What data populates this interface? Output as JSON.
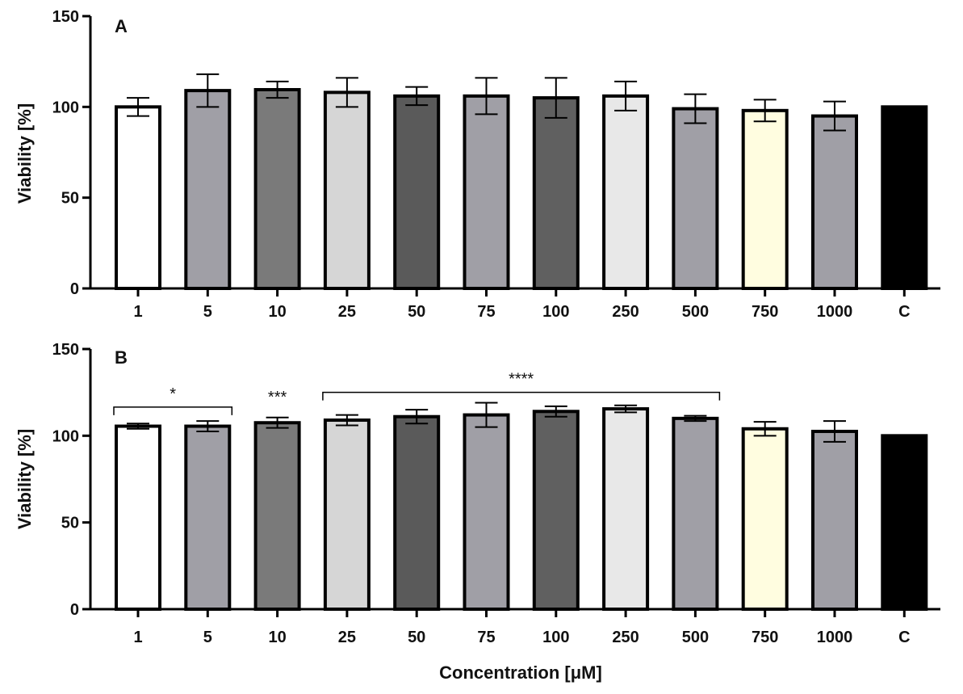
{
  "chart_data": [
    {
      "type": "bar",
      "panel_label": "A",
      "ylabel": "Viability [%]",
      "xlabel": "",
      "ylim": [
        0,
        150
      ],
      "yticks": [
        0,
        50,
        100,
        150
      ],
      "categories": [
        "1",
        "5",
        "10",
        "25",
        "50",
        "75",
        "100",
        "250",
        "500",
        "750",
        "1000",
        "C"
      ],
      "values": [
        100,
        109,
        109.5,
        108,
        106,
        106,
        105,
        106,
        99,
        98,
        95,
        100
      ],
      "errors": [
        5,
        9,
        4.5,
        8,
        5,
        10,
        11,
        8,
        8,
        6,
        8,
        0
      ],
      "bar_colors": [
        "#ffffff",
        "#a09fa6",
        "#7a7a7a",
        "#d6d6d6",
        "#5a5a5a",
        "#a09fa6",
        "#606060",
        "#e8e8e8",
        "#a09fa6",
        "#fffde0",
        "#a09fa6",
        "#000000"
      ],
      "significance": []
    },
    {
      "type": "bar",
      "panel_label": "B",
      "ylabel": "Viability [%]",
      "xlabel": "Concentration [μM]",
      "ylim": [
        0,
        150
      ],
      "yticks": [
        0,
        50,
        100,
        150
      ],
      "categories": [
        "1",
        "5",
        "10",
        "25",
        "50",
        "75",
        "100",
        "250",
        "500",
        "750",
        "1000",
        "C"
      ],
      "values": [
        105.5,
        105.5,
        107.5,
        109,
        111,
        112,
        114,
        115.5,
        110,
        104,
        102.5,
        100
      ],
      "errors": [
        1.5,
        3,
        3,
        3,
        4,
        7,
        3,
        2,
        1.5,
        4,
        6,
        0
      ],
      "bar_colors": [
        "#ffffff",
        "#a09fa6",
        "#7a7a7a",
        "#d6d6d6",
        "#5a5a5a",
        "#a09fa6",
        "#606060",
        "#e8e8e8",
        "#a09fa6",
        "#fffde0",
        "#a09fa6",
        "#000000"
      ],
      "significance": [
        {
          "label": "*",
          "from": 0,
          "to": 1,
          "bracket": true,
          "level": 116.5
        },
        {
          "label": "***",
          "from": 2,
          "to": 2,
          "bracket": false,
          "level": 114.5
        },
        {
          "label": "****",
          "from": 3,
          "to": 8,
          "bracket": true,
          "level": 125
        }
      ]
    }
  ]
}
